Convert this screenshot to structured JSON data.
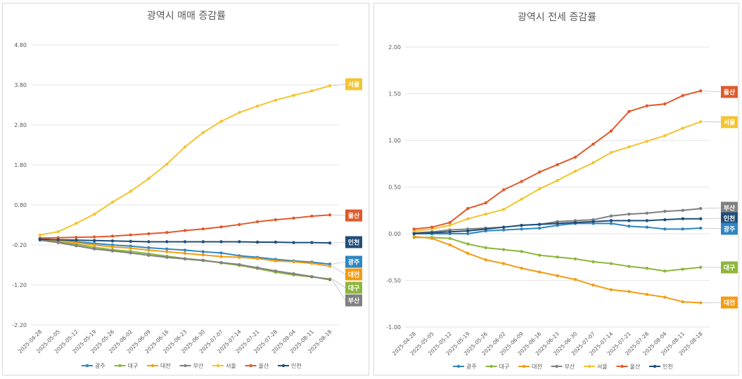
{
  "chart_data": [
    {
      "type": "line",
      "title": "광역시 매매 증감률",
      "xlabel": "",
      "ylabel": "",
      "ylim": [
        -2.2,
        4.8
      ],
      "yticks": [
        "4.80",
        "3.80",
        "2.80",
        "1.80",
        "0.80",
        "-0.20",
        "-1.20",
        "-2.20"
      ],
      "grid": true,
      "legend_position": "bottom",
      "categories": [
        "2025-04-28",
        "2025-05-05",
        "2025-05-12",
        "2025-05-19",
        "2025-05-26",
        "2025-06-02",
        "2025-06-09",
        "2025-06-16",
        "2025-06-23",
        "2025-06-30",
        "2025-07-07",
        "2025-07-14",
        "2025-07-21",
        "2025-07-28",
        "2025-08-04",
        "2025-08-11",
        "2025-08-18"
      ],
      "series": [
        {
          "name": "광주",
          "color": "#2E86C1",
          "values": [
            -0.05,
            -0.08,
            -0.12,
            -0.16,
            -0.2,
            -0.23,
            -0.27,
            -0.3,
            -0.33,
            -0.37,
            -0.4,
            -0.47,
            -0.51,
            -0.56,
            -0.6,
            -0.63,
            -0.68
          ]
        },
        {
          "name": "대구",
          "color": "#8DB63C",
          "values": [
            -0.07,
            -0.12,
            -0.18,
            -0.26,
            -0.32,
            -0.36,
            -0.42,
            -0.48,
            -0.54,
            -0.58,
            -0.65,
            -0.71,
            -0.79,
            -0.88,
            -0.95,
            -1.0,
            -1.05
          ]
        },
        {
          "name": "대전",
          "color": "#F39C12",
          "values": [
            -0.05,
            -0.09,
            -0.14,
            -0.2,
            -0.25,
            -0.28,
            -0.33,
            -0.37,
            -0.41,
            -0.45,
            -0.49,
            -0.51,
            -0.54,
            -0.6,
            -0.62,
            -0.66,
            -0.73
          ]
        },
        {
          "name": "부산",
          "color": "#808080",
          "values": [
            -0.08,
            -0.14,
            -0.22,
            -0.3,
            -0.35,
            -0.4,
            -0.46,
            -0.51,
            -0.55,
            -0.59,
            -0.64,
            -0.69,
            -0.77,
            -0.85,
            -0.92,
            -0.99,
            -1.07
          ]
        },
        {
          "name": "서울",
          "color": "#F4C430",
          "values": [
            0.05,
            0.13,
            0.34,
            0.57,
            0.87,
            1.14,
            1.46,
            1.82,
            2.25,
            2.61,
            2.89,
            3.11,
            3.27,
            3.42,
            3.54,
            3.65,
            3.78
          ]
        },
        {
          "name": "울산",
          "color": "#E05A2B",
          "values": [
            -0.03,
            -0.02,
            -0.01,
            0.0,
            0.02,
            0.05,
            0.08,
            0.11,
            0.16,
            0.2,
            0.25,
            0.31,
            0.38,
            0.43,
            0.47,
            0.52,
            0.55
          ]
        },
        {
          "name": "인천",
          "color": "#1F4E79",
          "values": [
            -0.06,
            -0.07,
            -0.08,
            -0.09,
            -0.1,
            -0.11,
            -0.12,
            -0.12,
            -0.12,
            -0.12,
            -0.12,
            -0.12,
            -0.13,
            -0.13,
            -0.14,
            -0.14,
            -0.15
          ]
        }
      ],
      "end_labels": [
        "서울",
        "울산",
        "인천",
        "광주",
        "대전",
        "대구",
        "부산"
      ]
    },
    {
      "type": "line",
      "title": "광역시 전세 증감률",
      "xlabel": "",
      "ylabel": "",
      "ylim": [
        -1.0,
        2.0
      ],
      "yticks": [
        "2.00",
        "1.50",
        "1.00",
        "0.50",
        "0.00",
        "-0.50",
        "-1.00"
      ],
      "grid": true,
      "legend_position": "bottom",
      "categories": [
        "2025-04-28",
        "2025-05-05",
        "2025-05-12",
        "2025-05-19",
        "2025-05-26",
        "2025-06-02",
        "2025-06-09",
        "2025-06-16",
        "2025-06-23",
        "2025-06-30",
        "2025-07-07",
        "2025-07-14",
        "2025-07-21",
        "2025-07-28",
        "2025-08-04",
        "2025-08-11",
        "2025-08-18"
      ],
      "series": [
        {
          "name": "광주",
          "color": "#2E86C1",
          "values": [
            0.0,
            0.0,
            0.0,
            0.0,
            0.03,
            0.04,
            0.05,
            0.06,
            0.09,
            0.11,
            0.11,
            0.11,
            0.08,
            0.07,
            0.05,
            0.05,
            0.06
          ]
        },
        {
          "name": "대구",
          "color": "#8DB63C",
          "values": [
            -0.04,
            -0.04,
            -0.05,
            -0.11,
            -0.15,
            -0.17,
            -0.19,
            -0.23,
            -0.25,
            -0.27,
            -0.3,
            -0.32,
            -0.35,
            -0.37,
            -0.4,
            -0.38,
            -0.36
          ]
        },
        {
          "name": "대전",
          "color": "#F39C12",
          "values": [
            -0.03,
            -0.05,
            -0.12,
            -0.21,
            -0.28,
            -0.32,
            -0.37,
            -0.41,
            -0.45,
            -0.49,
            -0.55,
            -0.6,
            -0.62,
            -0.65,
            -0.68,
            -0.73,
            -0.74
          ]
        },
        {
          "name": "부산",
          "color": "#808080",
          "values": [
            0.01,
            0.02,
            0.04,
            0.05,
            0.06,
            0.07,
            0.09,
            0.1,
            0.13,
            0.14,
            0.15,
            0.19,
            0.21,
            0.22,
            0.24,
            0.25,
            0.27
          ]
        },
        {
          "name": "서울",
          "color": "#F4C430",
          "values": [
            0.03,
            0.05,
            0.09,
            0.16,
            0.21,
            0.26,
            0.37,
            0.48,
            0.57,
            0.67,
            0.76,
            0.87,
            0.93,
            0.99,
            1.05,
            1.13,
            1.2
          ]
        },
        {
          "name": "울산",
          "color": "#E05A2B",
          "values": [
            0.05,
            0.07,
            0.12,
            0.27,
            0.33,
            0.47,
            0.56,
            0.66,
            0.74,
            0.82,
            0.96,
            1.1,
            1.31,
            1.37,
            1.39,
            1.48,
            1.53
          ]
        },
        {
          "name": "인천",
          "color": "#1F4E79",
          "values": [
            0.0,
            0.01,
            0.02,
            0.03,
            0.05,
            0.07,
            0.09,
            0.1,
            0.11,
            0.12,
            0.13,
            0.14,
            0.14,
            0.14,
            0.15,
            0.16,
            0.16
          ]
        }
      ],
      "end_labels": [
        "울산",
        "서울",
        "부산",
        "인천",
        "광주",
        "대구",
        "대전"
      ]
    }
  ]
}
